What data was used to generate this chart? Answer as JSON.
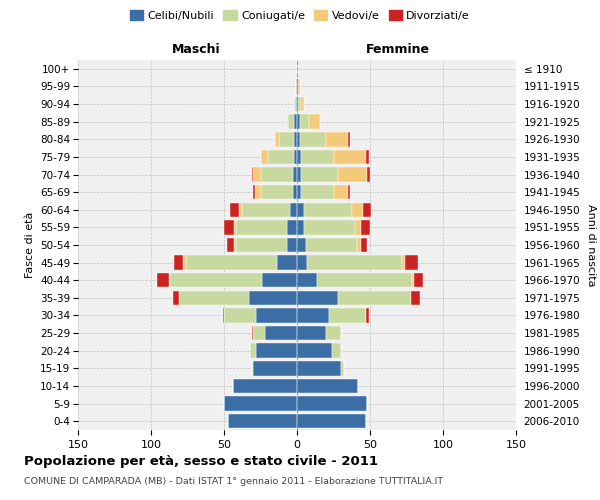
{
  "age_groups": [
    "0-4",
    "5-9",
    "10-14",
    "15-19",
    "20-24",
    "25-29",
    "30-34",
    "35-39",
    "40-44",
    "45-49",
    "50-54",
    "55-59",
    "60-64",
    "65-69",
    "70-74",
    "75-79",
    "80-84",
    "85-89",
    "90-94",
    "95-99",
    "100+"
  ],
  "birth_years": [
    "2006-2010",
    "2001-2005",
    "1996-2000",
    "1991-1995",
    "1986-1990",
    "1981-1985",
    "1976-1980",
    "1971-1975",
    "1966-1970",
    "1961-1965",
    "1956-1960",
    "1951-1955",
    "1946-1950",
    "1941-1945",
    "1936-1940",
    "1931-1935",
    "1926-1930",
    "1921-1925",
    "1916-1920",
    "1911-1915",
    "≤ 1910"
  ],
  "males": {
    "celibi": [
      47,
      50,
      44,
      30,
      28,
      22,
      28,
      33,
      24,
      14,
      7,
      7,
      5,
      3,
      3,
      2,
      2,
      2,
      1,
      1,
      0
    ],
    "coniugati": [
      0,
      0,
      0,
      1,
      4,
      8,
      22,
      48,
      63,
      62,
      35,
      35,
      33,
      22,
      22,
      18,
      10,
      4,
      1,
      0,
      0
    ],
    "vedovi": [
      0,
      0,
      0,
      0,
      0,
      0,
      0,
      0,
      1,
      2,
      1,
      1,
      2,
      4,
      5,
      5,
      3,
      1,
      0,
      0,
      0
    ],
    "divorziati": [
      0,
      0,
      0,
      0,
      0,
      1,
      1,
      4,
      8,
      6,
      5,
      7,
      6,
      1,
      1,
      0,
      0,
      0,
      0,
      0,
      0
    ]
  },
  "females": {
    "nubili": [
      47,
      48,
      42,
      30,
      24,
      20,
      22,
      28,
      14,
      7,
      6,
      5,
      5,
      3,
      3,
      3,
      2,
      2,
      1,
      1,
      0
    ],
    "coniugate": [
      0,
      0,
      0,
      2,
      6,
      10,
      25,
      50,
      65,
      65,
      35,
      35,
      33,
      22,
      25,
      22,
      18,
      6,
      2,
      0,
      0
    ],
    "vedove": [
      0,
      0,
      0,
      0,
      0,
      0,
      0,
      0,
      1,
      2,
      3,
      4,
      7,
      10,
      20,
      22,
      15,
      8,
      2,
      1,
      0
    ],
    "divorziate": [
      0,
      0,
      0,
      0,
      0,
      0,
      2,
      6,
      6,
      9,
      4,
      6,
      6,
      1,
      2,
      2,
      1,
      0,
      0,
      0,
      0
    ]
  },
  "colors": {
    "celibi": "#3a6ea5",
    "coniugati": "#c8d9a0",
    "vedovi": "#f5c97a",
    "divorziati": "#cc2222"
  },
  "legend_labels": [
    "Celibi/Nubili",
    "Coniugati/e",
    "Vedovi/e",
    "Divorziati/e"
  ],
  "title": "Popolazione per età, sesso e stato civile - 2011",
  "subtitle": "COMUNE DI CAMPARADA (MB) - Dati ISTAT 1° gennaio 2011 - Elaborazione TUTTITALIA.IT",
  "xlabel_left": "Maschi",
  "xlabel_right": "Femmine",
  "ylabel_left": "Fasce di età",
  "ylabel_right": "Anni di nascita",
  "xlim": 150,
  "bg_color": "#f0f0f0"
}
